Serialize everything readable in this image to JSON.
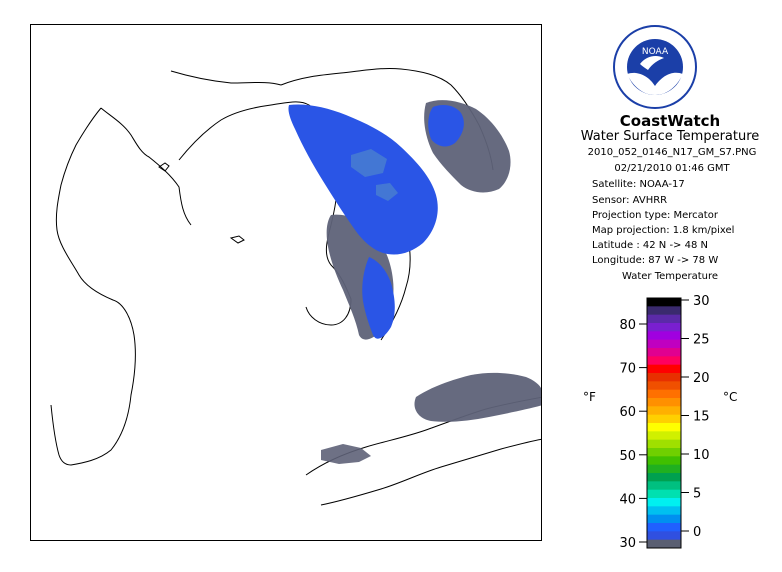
{
  "header": {
    "title": "CoastWatch",
    "subtitle": "Water Surface Temperature",
    "filename": "2010_052_0146_N17_GM_S7.PNG",
    "datetime": "02/21/2010   01:46 GMT",
    "satellite": "Satellite: NOAA-17",
    "sensor": "Sensor: AVHRR",
    "projection_type": "Projection type:  Mercator",
    "map_projection": "Map projection: 1.8 km/pixel",
    "latitude": "Latitude : 42 N -> 48 N",
    "longitude": "Longitude: 87 W -> 78 W"
  },
  "logo": {
    "text": "NOAA",
    "icon": "noaa-logo-icon"
  },
  "legend": {
    "title": "Water Temperature",
    "unit_f": "°F",
    "unit_c": "°C",
    "fahrenheit_ticks": [
      "80",
      "70",
      "60",
      "50",
      "40",
      "30"
    ],
    "celsius_ticks": [
      "30",
      "25",
      "20",
      "15",
      "10",
      "5",
      "0"
    ],
    "colors": [
      "#000000",
      "#3a2a6e",
      "#5b2aa8",
      "#7a1fd0",
      "#a000e0",
      "#c000c0",
      "#e00090",
      "#ff0060",
      "#ff0000",
      "#e83000",
      "#f05000",
      "#ff7000",
      "#ff9000",
      "#ffb000",
      "#ffd000",
      "#ffff00",
      "#d0f000",
      "#a0e000",
      "#70d000",
      "#40c000",
      "#20b020",
      "#00a050",
      "#00c080",
      "#00e0b0",
      "#00f0f0",
      "#00c0f0",
      "#0090f0",
      "#2060ff",
      "#3050e0",
      "#5a5f72"
    ],
    "land_color": "#5a5f72"
  },
  "map": {
    "water_color_blue": "#2a55e6",
    "water_color_dark": "#3460c8",
    "cloud_color": "#5e6278",
    "coast_color": "#000000"
  }
}
